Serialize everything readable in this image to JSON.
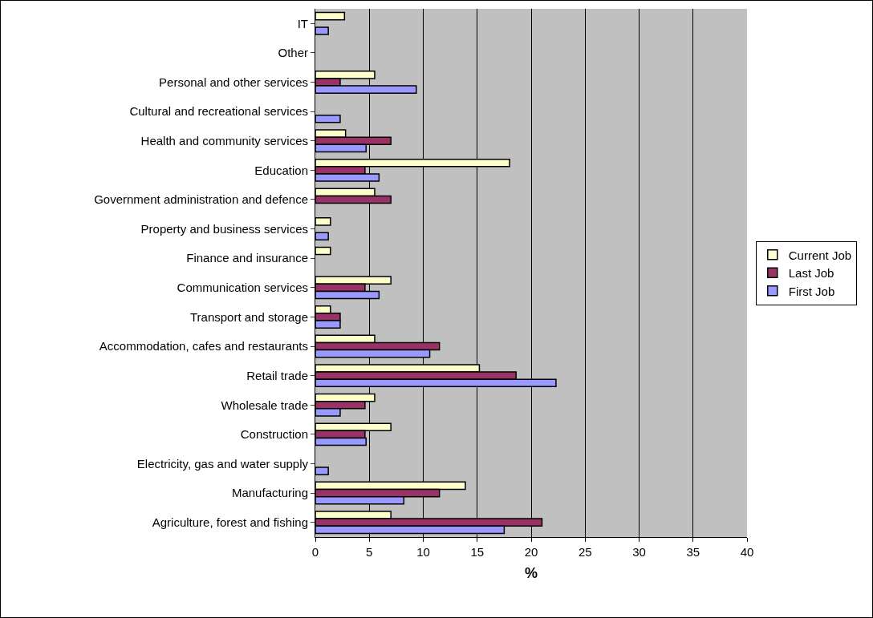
{
  "chart_data": {
    "type": "bar",
    "orientation": "horizontal",
    "xlabel": "%",
    "categories": [
      "IT",
      "Other",
      "Personal and other services",
      "Cultural and recreational services",
      "Health and community services",
      "Education",
      "Government administration and defence",
      "Property and business services",
      "Finance and insurance",
      "Communication services",
      "Transport and storage",
      "Accommodation, cafes and restaurants",
      "Retail trade",
      "Wholesale trade",
      "Construction",
      "Electricity, gas and water supply",
      "Manufacturing",
      "Agriculture, forest and fishing"
    ],
    "series": [
      {
        "name": "Current Job",
        "color": "#ffffcc",
        "values": [
          2.7,
          null,
          5.5,
          null,
          2.8,
          18.0,
          5.5,
          1.4,
          1.4,
          7.0,
          1.4,
          5.5,
          15.2,
          5.5,
          7.0,
          null,
          13.9,
          7.0
        ]
      },
      {
        "name": "Last Job",
        "color": "#993366",
        "values": [
          null,
          null,
          2.3,
          null,
          7.0,
          4.6,
          7.0,
          null,
          null,
          4.6,
          2.3,
          11.5,
          18.6,
          4.6,
          4.6,
          null,
          11.5,
          21.0
        ]
      },
      {
        "name": "First Job",
        "color": "#9999ff",
        "values": [
          1.2,
          null,
          9.35,
          2.3,
          4.7,
          5.9,
          null,
          1.2,
          null,
          5.9,
          2.3,
          10.6,
          22.3,
          2.3,
          4.7,
          1.2,
          8.2,
          17.5
        ]
      }
    ],
    "xlim": [
      0,
      40
    ],
    "xticks": [
      0,
      5,
      10,
      15,
      20,
      25,
      30,
      35,
      40
    ],
    "grid": "x",
    "legend": "right"
  }
}
